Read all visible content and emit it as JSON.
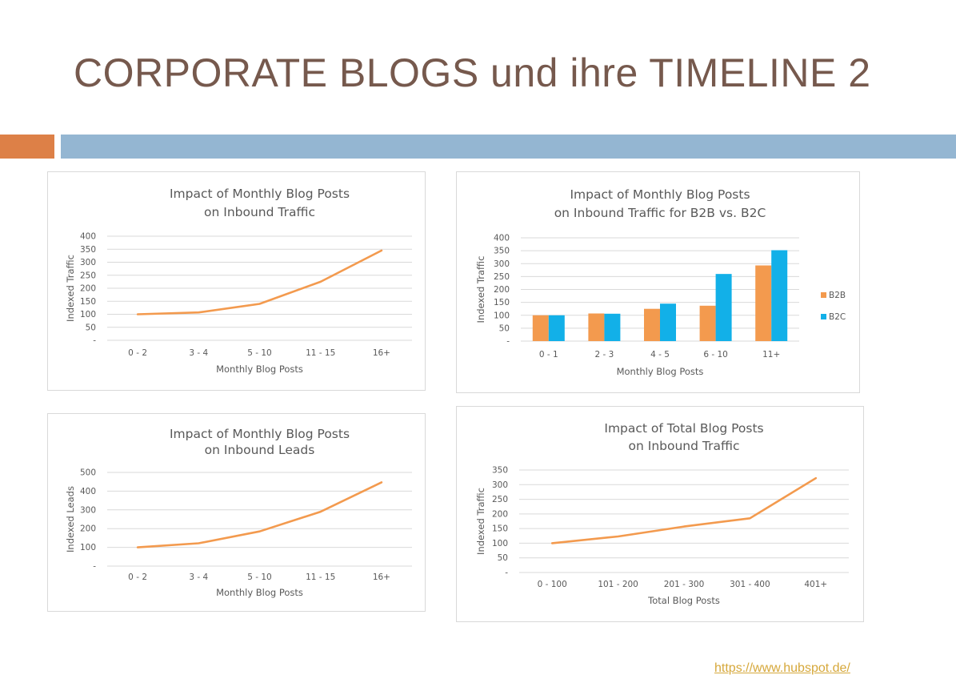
{
  "slide": {
    "title": "CORPORATE BLOGS und ihre TIMELINE 2",
    "source_link": "https://www.hubspot.de/"
  },
  "colors": {
    "title": "#76594d",
    "accent_orange": "#dd8047",
    "accent_blue": "#94b6d2",
    "series_orange": "#f39a4e",
    "series_blue": "#12b0e8"
  },
  "chart_data": [
    {
      "type": "line",
      "title_lines": [
        "Impact of Monthly Blog Posts",
        "on Inbound Traffic"
      ],
      "xlabel": "Monthly Blog Posts",
      "ylabel": "Indexed Traffic",
      "categories": [
        "0 - 2",
        "3 - 4",
        "5 - 10",
        "11 - 15",
        "16+"
      ],
      "series": [
        {
          "values": [
            100,
            107,
            140,
            225,
            345
          ]
        }
      ],
      "ylim": [
        0,
        400
      ],
      "yticks": [
        "-",
        "50",
        "100",
        "150",
        "200",
        "250",
        "300",
        "350",
        "400"
      ],
      "grid": true
    },
    {
      "type": "bar",
      "title_lines": [
        "Impact of Monthly Blog Posts",
        "on Inbound Traffic for B2B vs. B2C"
      ],
      "xlabel": "Monthly Blog Posts",
      "ylabel": "Indexed Traffic",
      "categories": [
        "0 - 1",
        "2 - 3",
        "4 - 5",
        "6 - 10",
        "11+"
      ],
      "series": [
        {
          "name": "B2B",
          "values": [
            100,
            107,
            125,
            137,
            293
          ]
        },
        {
          "name": "B2C",
          "values": [
            100,
            106,
            145,
            260,
            352
          ]
        }
      ],
      "ylim": [
        0,
        400
      ],
      "yticks": [
        "-",
        "50",
        "100",
        "150",
        "200",
        "250",
        "300",
        "350",
        "400"
      ],
      "grid": true,
      "legend": "right"
    },
    {
      "type": "line",
      "title_lines": [
        "Impact of Monthly Blog Posts",
        "on Inbound Leads"
      ],
      "xlabel": "Monthly Blog Posts",
      "ylabel": "Indexed Leads",
      "categories": [
        "0 - 2",
        "3 - 4",
        "5 - 10",
        "11 - 15",
        "16+"
      ],
      "series": [
        {
          "values": [
            100,
            122,
            185,
            290,
            447
          ]
        }
      ],
      "ylim": [
        0,
        500
      ],
      "yticks": [
        "-",
        "100",
        "200",
        "300",
        "400",
        "500"
      ],
      "grid": true
    },
    {
      "type": "line",
      "title_lines": [
        "Impact of Total Blog Posts",
        "on Inbound Traffic"
      ],
      "xlabel": "Total Blog Posts",
      "ylabel": "Indexed Traffic",
      "categories": [
        "0 - 100",
        "101 - 200",
        "201 - 300",
        "301 - 400",
        "401+"
      ],
      "series": [
        {
          "values": [
            100,
            123,
            157,
            185,
            322
          ]
        }
      ],
      "ylim": [
        0,
        350
      ],
      "yticks": [
        "-",
        "50",
        "100",
        "150",
        "200",
        "250",
        "300",
        "350"
      ],
      "grid": true
    }
  ]
}
